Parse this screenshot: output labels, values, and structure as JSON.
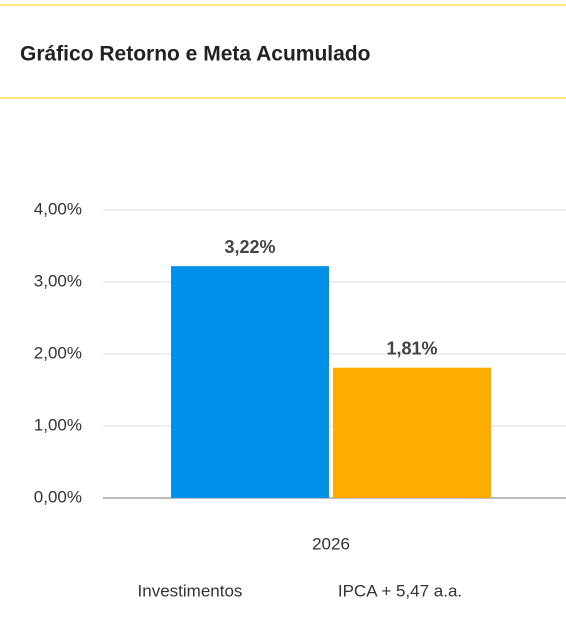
{
  "chart_data": {
    "type": "bar",
    "title": "Gráfico Retorno e Meta Acumulado",
    "categories": [
      "2026"
    ],
    "series": [
      {
        "name": "Investimentos",
        "color": "#0091ea",
        "values": [
          3.22
        ],
        "value_labels": [
          "3,22%"
        ]
      },
      {
        "name": "IPCA + 5,47 a.a.",
        "color": "#ffab00",
        "values": [
          1.81
        ],
        "value_labels": [
          "1,81%"
        ]
      }
    ],
    "ylim": [
      0,
      4
    ],
    "yticks": [
      {
        "value": 0,
        "label": "0,00%"
      },
      {
        "value": 1,
        "label": "1,00%"
      },
      {
        "value": 2,
        "label": "2,00%"
      },
      {
        "value": 3,
        "label": "3,00%"
      },
      {
        "value": 4,
        "label": "4,00%"
      }
    ],
    "grid": true,
    "legend": "bottom"
  }
}
